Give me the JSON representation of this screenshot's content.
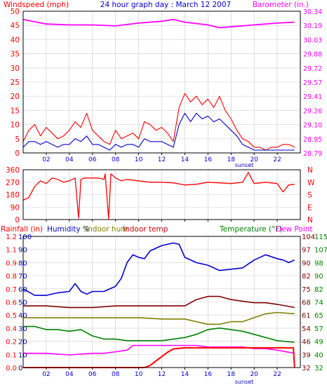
{
  "chart_data": [
    {
      "type": "line",
      "title": "24 hour graph day : March 12 2007",
      "left_label": "Windspeed (mph)",
      "right_label": "Barometer (in.)",
      "x_ticks": [
        "02",
        "04",
        "06",
        "08",
        "10",
        "12",
        "14",
        "16",
        "18",
        "20",
        "22"
      ],
      "x_note": "sunset",
      "x_range": [
        0,
        24
      ],
      "ylim_left": [
        0,
        50
      ],
      "yticks_left": [
        "50",
        "45",
        "40",
        "35",
        "30",
        "25",
        "20",
        "15",
        "10",
        "5",
        "0"
      ],
      "ylim_right": [
        28.79,
        30.34
      ],
      "yticks_right": [
        "30.34",
        "30.19",
        "30.03",
        "29.88",
        "29.72",
        "29.57",
        "29.41",
        "29.26",
        "29.10",
        "28.95",
        "28.79"
      ],
      "colors": {
        "gust": "#ff0000",
        "avg": "#0000cc",
        "baro": "#ff00ff"
      },
      "series": [
        {
          "key": "gust",
          "axis": "left",
          "x": [
            0,
            0.5,
            1,
            1.5,
            2,
            2.5,
            3,
            3.5,
            4,
            4.5,
            5,
            5.5,
            6,
            6.5,
            7,
            7.5,
            8,
            8.5,
            9,
            9.5,
            10,
            10.5,
            11,
            11.5,
            12,
            12.5,
            13,
            13.5,
            14,
            14.5,
            15,
            15.5,
            16,
            16.5,
            17,
            17.5,
            18,
            18.5,
            19,
            19.5,
            20,
            20.5,
            21,
            21.5,
            22,
            22.5,
            23,
            23.5
          ],
          "values": [
            4,
            8,
            10,
            6,
            9,
            7,
            5,
            6,
            8,
            11,
            9,
            14,
            8,
            6,
            4,
            3,
            8,
            5,
            6,
            7,
            5,
            11,
            10,
            8,
            9,
            7,
            4,
            16,
            21,
            18,
            20,
            17,
            19,
            16,
            20,
            15,
            12,
            8,
            5,
            4,
            2,
            2,
            1,
            2,
            2,
            3,
            3,
            2
          ]
        },
        {
          "key": "avg",
          "axis": "left",
          "x": [
            0,
            0.5,
            1,
            1.5,
            2,
            2.5,
            3,
            3.5,
            4,
            4.5,
            5,
            5.5,
            6,
            6.5,
            7,
            7.5,
            8,
            8.5,
            9,
            9.5,
            10,
            10.5,
            11,
            11.5,
            12,
            12.5,
            13,
            13.5,
            14,
            14.5,
            15,
            15.5,
            16,
            16.5,
            17,
            17.5,
            18,
            18.5,
            19,
            19.5,
            20,
            20.5,
            21,
            21.5,
            22,
            22.5,
            23,
            23.5
          ],
          "values": [
            2,
            4,
            4,
            3,
            4,
            3,
            2,
            3,
            3,
            5,
            4,
            6,
            3,
            3,
            2,
            1,
            3,
            2,
            3,
            3,
            2,
            5,
            4,
            4,
            4,
            3,
            2,
            10,
            14,
            11,
            14,
            12,
            13,
            11,
            12,
            10,
            8,
            6,
            3,
            2,
            1,
            1,
            1,
            1,
            1,
            1,
            1,
            1
          ]
        },
        {
          "key": "baro",
          "axis": "right",
          "x": [
            0,
            2,
            4,
            6,
            8,
            10,
            12,
            13,
            14,
            16,
            17,
            18,
            20,
            22,
            23.5
          ],
          "values": [
            30.25,
            30.2,
            30.19,
            30.19,
            30.18,
            30.21,
            30.23,
            30.25,
            30.22,
            30.19,
            30.16,
            30.17,
            30.19,
            30.21,
            30.22
          ]
        }
      ]
    },
    {
      "type": "line",
      "right_label": "N W S E N",
      "right_letters": [
        "N",
        "W",
        "S",
        "E",
        "N"
      ],
      "ylim": [
        0,
        360
      ],
      "yticks": [
        "360",
        "270",
        "180",
        "90",
        "0"
      ],
      "x_range": [
        0,
        24
      ],
      "color": "#ff0000",
      "series": [
        {
          "key": "dir",
          "x": [
            0,
            0.5,
            1,
            1.5,
            2,
            2.5,
            3,
            3.5,
            4,
            4.5,
            4.8,
            5,
            5.3,
            6,
            6.5,
            7,
            7.1,
            7.4,
            7.6,
            8,
            8.5,
            9,
            10,
            11,
            12,
            13,
            14,
            15,
            16,
            17,
            18,
            19,
            19.5,
            20,
            21,
            22,
            22.5,
            23,
            23.5
          ],
          "values": [
            140,
            160,
            240,
            280,
            260,
            300,
            290,
            270,
            280,
            300,
            10,
            290,
            300,
            300,
            300,
            290,
            330,
            5,
            330,
            300,
            280,
            290,
            280,
            270,
            270,
            265,
            250,
            255,
            270,
            265,
            260,
            270,
            340,
            260,
            270,
            260,
            200,
            250,
            255
          ]
        }
      ]
    },
    {
      "type": "line",
      "x_ticks": [
        "02",
        "04",
        "06",
        "08",
        "10",
        "12",
        "14",
        "16",
        "18",
        "20",
        "22"
      ],
      "x_note": "sunset",
      "x_range": [
        0,
        24
      ],
      "legend_left": [
        {
          "label": "Rainfall (in)",
          "color": "#ff0000"
        },
        {
          "label": "Humidity %",
          "color": "#0000cc"
        },
        {
          "label": "Indoor hum",
          "color": "#808000"
        },
        {
          "label": "Indoor temp",
          "color": "#cc0000"
        }
      ],
      "legend_right": [
        {
          "label": "Temperature (°F)",
          "color": "#008000"
        },
        {
          "label": "Dew Point",
          "color": "#ff00ff"
        }
      ],
      "ylim_rain": [
        0,
        1.2
      ],
      "yticks_rain": [
        "1.2",
        "1.1",
        "0.9",
        "0.8",
        "0.7",
        "0.6",
        "0.5",
        "0.4",
        "0.2",
        "0.1",
        "0.0"
      ],
      "ylim_pct": [
        0,
        100
      ],
      "yticks_pct": [
        "100",
        "90",
        "80",
        "70",
        "60",
        "50",
        "40",
        "30",
        "20",
        "10",
        "0"
      ],
      "ylim_temp_right_outer": [
        32,
        115
      ],
      "yticks_temp_right_outer": [
        "115",
        "107",
        "98",
        "90",
        "82",
        "74",
        "65",
        "57",
        "49",
        "40",
        "32"
      ],
      "yticks_temp_right_inner": [
        "104",
        "97",
        "90",
        "82",
        "75",
        "68",
        "61",
        "54",
        "46",
        "39",
        "32"
      ],
      "colors": {
        "rain": "#ff0000",
        "hum": "#0000cc",
        "inhum": "#808000",
        "intemp": "#800000",
        "temp": "#008000",
        "dew": "#ff00ff"
      },
      "series": [
        {
          "key": "hum",
          "axis": "pct",
          "x": [
            0,
            1,
            2,
            3,
            4,
            4.5,
            5,
            5.5,
            6,
            7,
            8,
            8.5,
            9,
            9.5,
            10,
            10.5,
            11,
            12,
            13,
            13.5,
            14,
            15,
            16,
            17,
            18,
            19,
            20,
            21,
            22,
            22.5,
            23,
            23.5
          ],
          "values": [
            60,
            55,
            55,
            57,
            58,
            64,
            58,
            56,
            58,
            58,
            62,
            68,
            80,
            86,
            84,
            83,
            89,
            93,
            95,
            94,
            84,
            80,
            78,
            74,
            75,
            76,
            82,
            86,
            83,
            82,
            80,
            82
          ]
        },
        {
          "key": "inhum",
          "axis": "pct",
          "x": [
            0,
            2,
            4,
            6,
            8,
            10,
            12,
            14,
            15,
            16,
            17,
            18,
            19,
            20,
            21,
            22,
            23.5
          ],
          "values": [
            38,
            38,
            38,
            38,
            38,
            38,
            37,
            37,
            35,
            33,
            33,
            35,
            35,
            38,
            41,
            42,
            41
          ]
        },
        {
          "key": "intemp",
          "axis": "temp",
          "x": [
            0,
            2,
            4,
            6,
            8,
            10,
            12,
            14,
            15,
            16,
            17,
            18,
            19,
            20,
            21,
            22,
            23.5
          ],
          "values": [
            71,
            71,
            70,
            70,
            71,
            71,
            71,
            71,
            75,
            77,
            77,
            75,
            74,
            73,
            73,
            72,
            70
          ]
        },
        {
          "key": "temp",
          "axis": "temp",
          "x": [
            0,
            1,
            2,
            3,
            4,
            5,
            6,
            7,
            8,
            9,
            10,
            11,
            12,
            13,
            14,
            15,
            16,
            17,
            18,
            19,
            20,
            21,
            22,
            23.5
          ],
          "values": [
            58,
            58,
            56,
            56,
            55,
            56,
            52,
            50,
            50,
            49,
            49,
            49,
            49,
            50,
            51,
            53,
            56,
            57,
            56,
            55,
            53,
            51,
            49,
            48
          ]
        },
        {
          "key": "dew",
          "axis": "temp",
          "x": [
            0,
            2,
            4,
            6,
            7,
            8,
            9,
            9.5,
            10,
            11,
            12,
            13,
            14,
            15,
            16,
            17,
            18,
            19,
            20,
            21,
            22,
            23.5
          ],
          "values": [
            41,
            41,
            40,
            41,
            41,
            42,
            43,
            46,
            46,
            46,
            46,
            46,
            46,
            46,
            45,
            45,
            45,
            45,
            44,
            44,
            43,
            41
          ]
        },
        {
          "key": "rain",
          "axis": "rain",
          "x": [
            0,
            10,
            10.5,
            11,
            11.5,
            12,
            12.5,
            13,
            14,
            16,
            18,
            20,
            22,
            23.4,
            23.5
          ],
          "values": [
            0,
            0,
            0,
            0.02,
            0.06,
            0.1,
            0.14,
            0.17,
            0.18,
            0.18,
            0.18,
            0.18,
            0.18,
            0.18,
            0
          ]
        }
      ]
    }
  ]
}
